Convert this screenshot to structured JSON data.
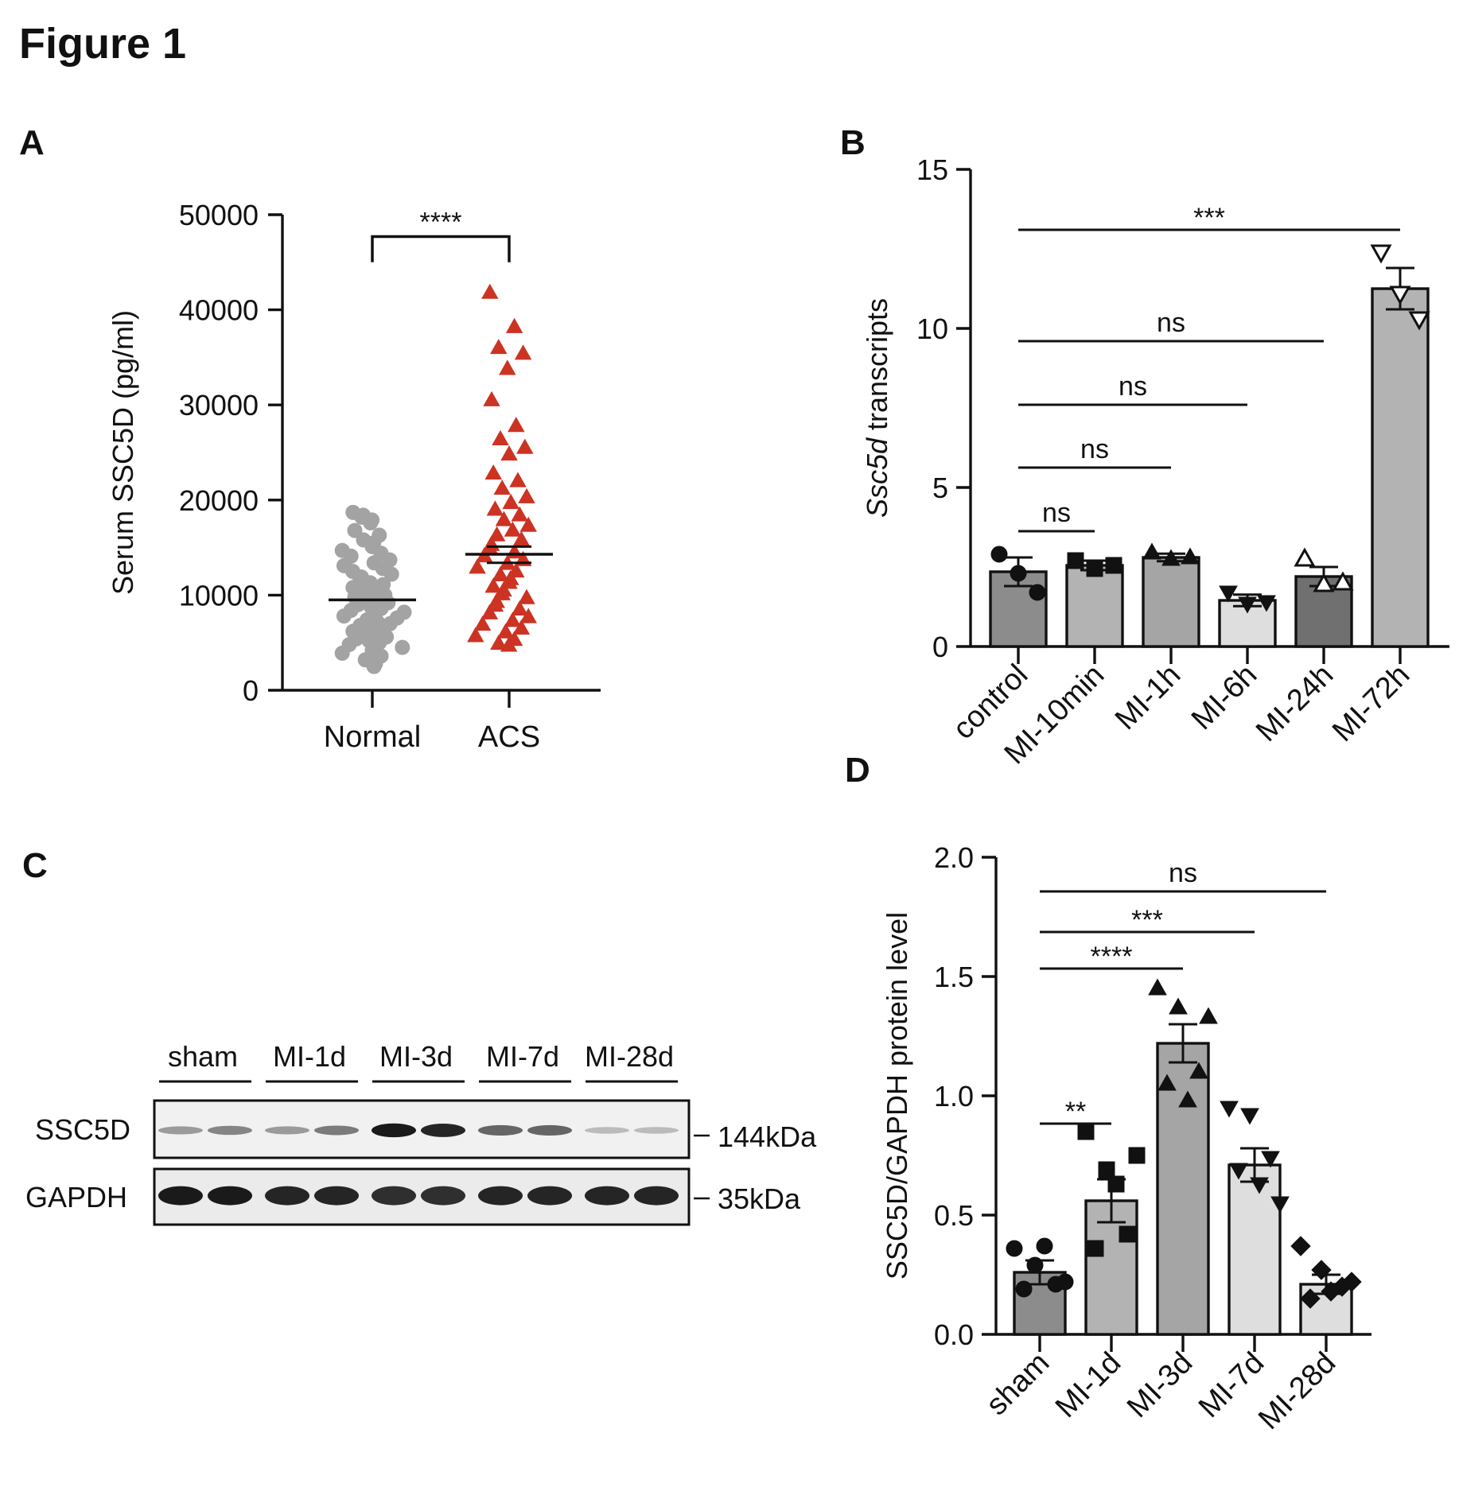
{
  "figure_title": "Figure 1",
  "panels": {
    "A": {
      "letter": "A"
    },
    "B": {
      "letter": "B"
    },
    "C": {
      "letter": "C"
    },
    "D": {
      "letter": "D"
    }
  },
  "colors": {
    "normal_points": "#a3a3a3",
    "acs_points": "#cc3322",
    "axis": "#111111",
    "control_bar": "#8c8c8c",
    "light_bar": "#b3b3b3",
    "mid_bar": "#a5a5a5",
    "pale_bar": "#dedede",
    "dark_bar": "#707070"
  },
  "chart_data": [
    {
      "panel": "A",
      "type": "scatter",
      "title": "",
      "xlabel": "",
      "ylabel": "Serum SSC5D (pg/ml)",
      "ylim": [
        0,
        50000
      ],
      "yticks": [
        0,
        10000,
        20000,
        30000,
        40000,
        50000
      ],
      "ytick_labels": [
        "0",
        "10000",
        "20000",
        "30000",
        "40000",
        "50000"
      ],
      "categories": [
        "Normal",
        "ACS"
      ],
      "series": [
        {
          "name": "Normal",
          "marker": "circle",
          "mean": 9500,
          "values": [
            18700,
            18400,
            18200,
            17900,
            17600,
            16800,
            16300,
            15800,
            15500,
            15100,
            14700,
            14400,
            14100,
            13700,
            13400,
            13100,
            12800,
            12500,
            12200,
            11900,
            11600,
            11300,
            11100,
            10800,
            10600,
            10400,
            10200,
            10000,
            9800,
            9600,
            9400,
            9200,
            9000,
            8800,
            8600,
            8400,
            8200,
            8000,
            7800,
            7600,
            7400,
            7200,
            7000,
            6800,
            6600,
            6400,
            6200,
            6000,
            5800,
            5600,
            5400,
            5200,
            5000,
            4800,
            4500,
            4200,
            3900,
            3600,
            3200,
            2800,
            2500
          ]
        },
        {
          "name": "ACS",
          "marker": "triangle",
          "mean": 14300,
          "sem_upper": 15100,
          "sem_lower": 13400,
          "values": [
            41800,
            38200,
            36000,
            35400,
            33800,
            30500,
            27800,
            26400,
            25500,
            24800,
            22800,
            22000,
            21200,
            20300,
            19700,
            19000,
            18400,
            17900,
            17300,
            16800,
            16300,
            15800,
            15300,
            14900,
            14500,
            14100,
            13700,
            13300,
            12900,
            12500,
            12100,
            11700,
            11300,
            10900,
            10500,
            10100,
            9700,
            9300,
            8900,
            8500,
            8100,
            7700,
            7300,
            6900,
            6500,
            6100,
            5700,
            5300,
            4900,
            4700
          ]
        }
      ],
      "significance": [
        {
          "between": [
            "Normal",
            "ACS"
          ],
          "label": "****"
        }
      ]
    },
    {
      "panel": "B",
      "type": "bar",
      "title": "",
      "xlabel": "",
      "ylabel_italic": "Ssc5d",
      "ylabel_rest": " transcripts",
      "ylim": [
        0,
        15
      ],
      "yticks": [
        0,
        5,
        10,
        15
      ],
      "ytick_labels": [
        "0",
        "5",
        "10",
        "15"
      ],
      "categories": [
        "control",
        "MI-10min",
        "MI-1h",
        "MI-6h",
        "MI-24h",
        "MI-72h"
      ],
      "values": [
        2.35,
        2.55,
        2.8,
        1.45,
        2.2,
        11.25
      ],
      "sem": [
        0.45,
        0.15,
        0.12,
        0.18,
        0.3,
        0.65
      ],
      "markers": [
        "circle",
        "square",
        "triangle",
        "triangle-down",
        "triangle-open",
        "triangle-down-open"
      ],
      "points": [
        [
          2.9,
          2.3,
          1.7
        ],
        [
          2.7,
          2.45,
          2.55
        ],
        [
          2.95,
          2.75,
          2.8
        ],
        [
          1.7,
          1.35,
          1.4
        ],
        [
          2.75,
          1.95,
          2.0
        ],
        [
          12.4,
          11.1,
          10.3
        ]
      ],
      "significance": [
        {
          "from": "control",
          "to": "MI-10min",
          "label": "ns"
        },
        {
          "from": "control",
          "to": "MI-1h",
          "label": "ns"
        },
        {
          "from": "control",
          "to": "MI-6h",
          "label": "ns"
        },
        {
          "from": "control",
          "to": "MI-24h",
          "label": "ns"
        },
        {
          "from": "control",
          "to": "MI-72h",
          "label": "***"
        }
      ]
    },
    {
      "panel": "D",
      "type": "bar",
      "title": "",
      "xlabel": "",
      "ylabel": "SSC5D/GAPDH protein level",
      "ylim": [
        0,
        2.0
      ],
      "yticks": [
        0,
        0.5,
        1.0,
        1.5,
        2.0
      ],
      "ytick_labels": [
        "0.0",
        "0.5",
        "1.0",
        "1.5",
        "2.0"
      ],
      "categories": [
        "sham",
        "MI-1d",
        "MI-3d",
        "MI-7d",
        "MI-28d"
      ],
      "values": [
        0.26,
        0.56,
        1.22,
        0.71,
        0.21
      ],
      "sem": [
        0.05,
        0.09,
        0.08,
        0.07,
        0.04
      ],
      "markers": [
        "circle",
        "square",
        "triangle",
        "triangle-down",
        "diamond"
      ],
      "points": [
        [
          0.36,
          0.29,
          0.21,
          0.19,
          0.37,
          0.22
        ],
        [
          0.85,
          0.69,
          0.42,
          0.36,
          0.63,
          0.75
        ],
        [
          1.45,
          1.37,
          1.1,
          1.05,
          0.98,
          1.33
        ],
        [
          0.95,
          0.92,
          0.74,
          0.69,
          0.63,
          0.55
        ],
        [
          0.37,
          0.27,
          0.2,
          0.15,
          0.18,
          0.22
        ]
      ],
      "significance": [
        {
          "from": "sham",
          "to": "MI-1d",
          "label": "**"
        },
        {
          "from": "sham",
          "to": "MI-3d",
          "label": "****"
        },
        {
          "from": "sham",
          "to": "MI-7d",
          "label": "***"
        },
        {
          "from": "sham",
          "to": "MI-28d",
          "label": "ns"
        }
      ]
    }
  ],
  "western_blot": {
    "groups": [
      "sham",
      "MI-1d",
      "MI-3d",
      "MI-7d",
      "MI-28d"
    ],
    "rows": [
      {
        "name": "SSC5D",
        "size": "144kDa",
        "band_intensity": [
          0.35,
          0.45,
          0.35,
          0.5,
          0.95,
          0.9,
          0.6,
          0.6,
          0.2,
          0.2
        ]
      },
      {
        "name": "GAPDH",
        "size": "35kDa",
        "band_intensity": [
          0.95,
          0.95,
          0.9,
          0.9,
          0.85,
          0.85,
          0.9,
          0.9,
          0.9,
          0.9
        ]
      }
    ]
  }
}
